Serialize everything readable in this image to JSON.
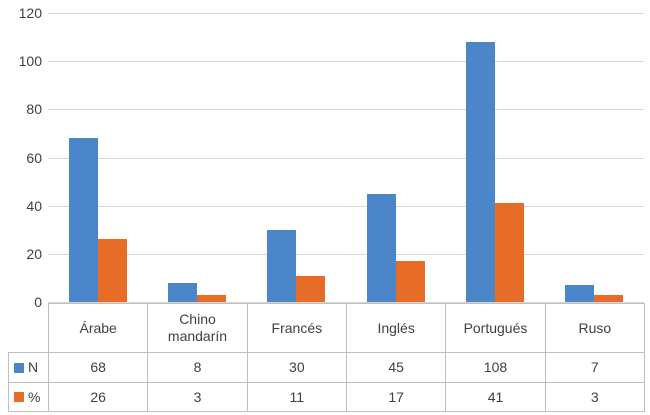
{
  "chart_data": {
    "type": "bar",
    "title": "",
    "xlabel": "",
    "ylabel": "",
    "categories": [
      "Árabe",
      "Chino mandarín",
      "Francés",
      "Inglés",
      "Portugués",
      "Ruso"
    ],
    "series": [
      {
        "name": "N",
        "color": "#4a86c8",
        "values": [
          68,
          8,
          30,
          45,
          108,
          7
        ]
      },
      {
        "name": "%",
        "color": "#e66c28",
        "values": [
          26,
          3,
          11,
          17,
          41,
          3
        ]
      }
    ],
    "ylim": [
      0,
      120
    ],
    "yticks": [
      0,
      20,
      40,
      60,
      80,
      100,
      120
    ],
    "grid": true,
    "legend_position": "data-table-left"
  },
  "colors": {
    "gridline": "#d6d6d6",
    "table_border": "#bfbfbf",
    "text": "#404040",
    "background": "#ffffff"
  }
}
